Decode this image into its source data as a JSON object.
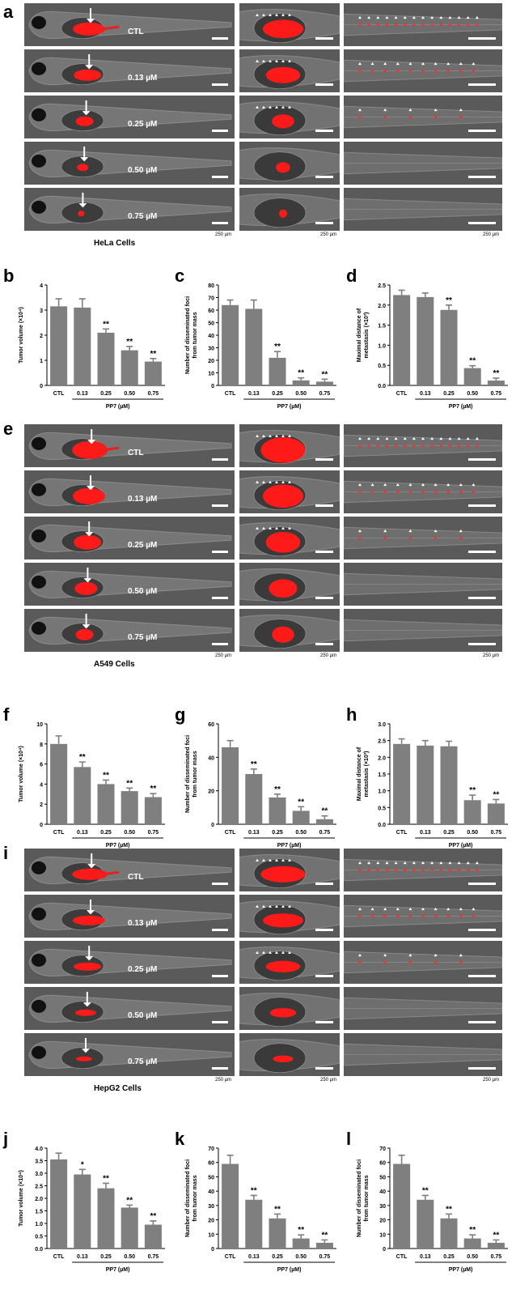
{
  "figure": {
    "sets": [
      {
        "letter": "a",
        "cells_label": "HeLa Cells",
        "doses": [
          "CTL",
          "0.13 µM",
          "0.25 µM",
          "0.50 µM",
          "0.75 µM"
        ],
        "scale_labels": [
          "250 µm",
          "250 µm",
          "250 µm"
        ]
      },
      {
        "letter": "e",
        "cells_label": "A549 Cells",
        "doses": [
          "CTL",
          "0.13 µM",
          "0.25 µM",
          "0.50 µM",
          "0.75 µM"
        ],
        "scale_labels": [
          "250 µm",
          "250 µm",
          "250 µm"
        ]
      },
      {
        "letter": "i",
        "cells_label": "HepG2 Cells",
        "doses": [
          "CTL",
          "0.13 µM",
          "0.25 µM",
          "0.50 µM",
          "0.75 µM"
        ],
        "scale_labels": [
          "250 µm",
          "250 µm",
          "250 µm"
        ]
      }
    ]
  },
  "chart_data": [
    {
      "letter": "b",
      "type": "bar",
      "categories": [
        "CTL",
        "0.13",
        "0.25",
        "0.50",
        "0.75"
      ],
      "values": [
        3.15,
        3.1,
        2.1,
        1.4,
        0.95
      ],
      "errors": [
        0.3,
        0.35,
        0.15,
        0.15,
        0.12
      ],
      "sig": [
        "",
        "",
        "**",
        "**",
        "**"
      ],
      "ylabel": "Tumor volume (×10⁴)",
      "ylim": [
        0,
        4
      ],
      "yticks": [
        0,
        1,
        2,
        3,
        4
      ],
      "group_label": "PP7 (µM)"
    },
    {
      "letter": "c",
      "type": "bar",
      "categories": [
        "CTL",
        "0.13",
        "0.25",
        "0.50",
        "0.75"
      ],
      "values": [
        64,
        61,
        22,
        4,
        3
      ],
      "errors": [
        4,
        7,
        5,
        2,
        2
      ],
      "sig": [
        "",
        "",
        "**",
        "**",
        "**"
      ],
      "ylabel": "Number of disseminated foci from tumor mass",
      "ylim": [
        0,
        80
      ],
      "yticks": [
        0,
        10,
        20,
        30,
        40,
        50,
        60,
        70,
        80
      ],
      "group_label": "PP7 (µM)"
    },
    {
      "letter": "d",
      "type": "bar",
      "categories": [
        "CTL",
        "0.13",
        "0.25",
        "0.50",
        "0.75"
      ],
      "values": [
        2.25,
        2.2,
        1.88,
        0.43,
        0.12
      ],
      "errors": [
        0.12,
        0.1,
        0.12,
        0.06,
        0.06
      ],
      "sig": [
        "",
        "",
        "**",
        "**",
        "**"
      ],
      "ylabel": "Maximal distance of metastasis (×10³)",
      "ylim": [
        0,
        2.5
      ],
      "yticks": [
        0.0,
        0.5,
        1.0,
        1.5,
        2.0,
        2.5
      ],
      "group_label": "PP7 (µM)"
    },
    {
      "letter": "f",
      "type": "bar",
      "categories": [
        "CTL",
        "0.13",
        "0.25",
        "0.50",
        "0.75"
      ],
      "values": [
        8.0,
        5.7,
        4.0,
        3.3,
        2.7
      ],
      "errors": [
        0.8,
        0.5,
        0.4,
        0.3,
        0.35
      ],
      "sig": [
        "",
        "**",
        "**",
        "**",
        "**"
      ],
      "ylabel": "Tumor volume (×10⁴)",
      "ylim": [
        0,
        10
      ],
      "yticks": [
        0,
        2,
        4,
        6,
        8,
        10
      ],
      "group_label": "PP7 (µM)"
    },
    {
      "letter": "g",
      "type": "bar",
      "categories": [
        "CTL",
        "0.13",
        "0.25",
        "0.50",
        "0.75"
      ],
      "values": [
        46,
        30,
        16,
        8,
        3
      ],
      "errors": [
        4,
        3,
        2,
        2.5,
        2
      ],
      "sig": [
        "",
        "**",
        "**",
        "**",
        "**"
      ],
      "ylabel": "Number of disseminated foci from tumor mass",
      "ylim": [
        0,
        60
      ],
      "yticks": [
        0,
        20,
        40,
        60
      ],
      "group_label": "PP7 (µM)"
    },
    {
      "letter": "h",
      "type": "bar",
      "categories": [
        "CTL",
        "0.13",
        "0.25",
        "0.50",
        "0.75"
      ],
      "values": [
        2.4,
        2.35,
        2.33,
        0.72,
        0.62
      ],
      "errors": [
        0.15,
        0.15,
        0.15,
        0.15,
        0.12
      ],
      "sig": [
        "",
        "",
        "",
        "**",
        "**"
      ],
      "ylabel": "Maximal distance of metastasis (×10³)",
      "ylim": [
        0,
        3.0
      ],
      "yticks": [
        0.0,
        0.5,
        1.0,
        1.5,
        2.0,
        2.5,
        3.0
      ],
      "group_label": "PP7 (µM)"
    },
    {
      "letter": "j",
      "type": "bar",
      "categories": [
        "CTL",
        "0.13",
        "0.25",
        "0.50",
        "0.75"
      ],
      "values": [
        3.55,
        2.95,
        2.4,
        1.63,
        0.95
      ],
      "errors": [
        0.25,
        0.2,
        0.2,
        0.1,
        0.15
      ],
      "sig": [
        "",
        "*",
        "**",
        "**",
        "**"
      ],
      "ylabel": "Tumor volume (×10⁴)",
      "ylim": [
        0,
        4.0
      ],
      "yticks": [
        0.0,
        0.5,
        1.0,
        1.5,
        2.0,
        2.5,
        3.0,
        3.5,
        4.0
      ],
      "group_label": "PP7 (µM)"
    },
    {
      "letter": "k",
      "type": "bar",
      "categories": [
        "CTL",
        "0.13",
        "0.25",
        "0.50",
        "0.75"
      ],
      "values": [
        59,
        34,
        21,
        7,
        4
      ],
      "errors": [
        6,
        3,
        3,
        2.5,
        2
      ],
      "sig": [
        "",
        "**",
        "**",
        "**",
        "**"
      ],
      "ylabel": "Number of disseminated foci from tumor mass",
      "ylim": [
        0,
        70
      ],
      "yticks": [
        0,
        10,
        20,
        30,
        40,
        50,
        60,
        70
      ],
      "group_label": "PP7 (µM)"
    },
    {
      "letter": "l",
      "type": "bar",
      "categories": [
        "CTL",
        "0.13",
        "0.25",
        "0.50",
        "0.75"
      ],
      "values": [
        59,
        34,
        21,
        7,
        4
      ],
      "errors": [
        6,
        3,
        3,
        2.5,
        2
      ],
      "sig": [
        "",
        "**",
        "**",
        "**",
        "**"
      ],
      "ylabel": "Number of disseminated foci from tumor mass",
      "ylim": [
        0,
        70
      ],
      "yticks": [
        0,
        10,
        20,
        30,
        40,
        50,
        60,
        70
      ],
      "group_label": "PP7 (µM)"
    }
  ]
}
